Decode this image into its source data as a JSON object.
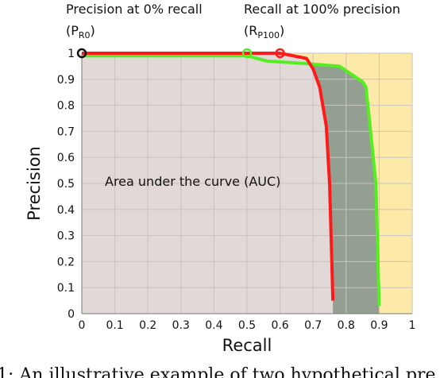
{
  "chart_data": {
    "type": "line",
    "xlabel": "Recall",
    "ylabel": "Precision",
    "xlim": [
      0,
      1
    ],
    "ylim": [
      0,
      1
    ],
    "x_ticks": [
      "0",
      "0.1",
      "0.2",
      "0.3",
      "0.4",
      "0.5",
      "0.6",
      "0.7",
      "0.8",
      "0.9",
      "1"
    ],
    "y_ticks": [
      "0",
      "0.1",
      "0.2",
      "0.3",
      "0.4",
      "0.5",
      "0.6",
      "0.7",
      "0.8",
      "0.9",
      "1"
    ],
    "grid": true,
    "series": [
      {
        "color": "#ff1a1a",
        "x": [
          0,
          0.6,
          0.68,
          0.7,
          0.72,
          0.74,
          0.75,
          0.76
        ],
        "y": [
          1,
          1,
          0.98,
          0.94,
          0.87,
          0.72,
          0.5,
          0.05
        ]
      },
      {
        "color": "#55ee22",
        "x": [
          0,
          0.5,
          0.56,
          0.68,
          0.78,
          0.85,
          0.86,
          0.87,
          0.89,
          0.9
        ],
        "y": [
          0.99,
          0.99,
          0.97,
          0.96,
          0.95,
          0.89,
          0.87,
          0.75,
          0.5,
          0.03
        ]
      }
    ],
    "markers": [
      {
        "x": 0,
        "y": 1,
        "color": "#111111"
      },
      {
        "x": 0.5,
        "y": 1,
        "color": "#55ee22"
      },
      {
        "x": 0.6,
        "y": 1,
        "color": "#ff1a1a"
      }
    ],
    "area_fill_color": "#e0d9d7",
    "diff_fill_color": "#93a091",
    "beyond_fill_color": "#fde9a8",
    "annotations": {
      "auc": "Area under the curve (AUC)",
      "p_r0_line1": "Precision at 0% recall",
      "p_r0_open": "(P",
      "p_r0_sub": "R0",
      "p_r0_close": ")",
      "r_p100_line1": "Recall at 100% precision",
      "r_p100_open": "(R",
      "r_p100_sub": "P100",
      "r_p100_close": ")"
    }
  },
  "caption": "1: An illustrative example of two hypothetical pre"
}
